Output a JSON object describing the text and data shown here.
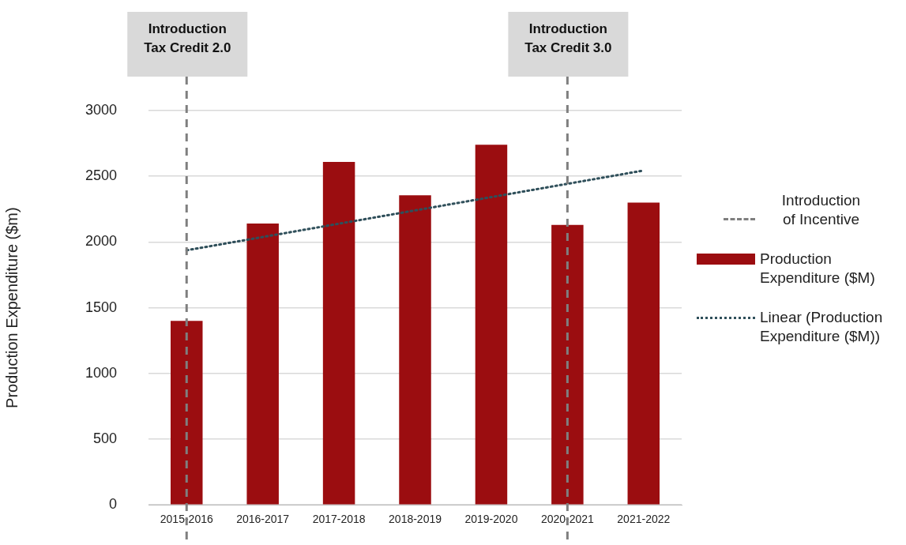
{
  "chart_data": {
    "type": "bar",
    "ylabel": "Production Expenditure ($m)",
    "categories": [
      "2015-2016",
      "2016-2017",
      "2017-2018",
      "2018-2019",
      "2019-2020",
      "2020-2021",
      "2021-2022"
    ],
    "series": [
      {
        "name": "Production Expenditure ($M)",
        "color": "#9b0d10",
        "values": [
          1400,
          2140,
          2610,
          2355,
          2740,
          2130,
          2300
        ]
      },
      {
        "name": "Linear (Production Expenditure ($M))",
        "type": "line",
        "color": "#2f4f5a",
        "line_style": "dotted",
        "marker": "none",
        "x": [
          "2015-2016",
          "2021-2022"
        ],
        "values": [
          1937,
          2544
        ]
      }
    ],
    "ylim": [
      0,
      3000
    ],
    "yticks": [
      0,
      500,
      1000,
      1500,
      2000,
      2500,
      3000
    ],
    "grid": "y",
    "legend": "right",
    "ref_lines": [
      {
        "axis": "x",
        "value": "2015-2016",
        "label": "Introduction\nTax Credit 2.0",
        "color": "#7f7f7f",
        "line_style": "dashed"
      },
      {
        "axis": "x",
        "value": "2020-2021",
        "label": "Introduction\nTax Credit 3.0",
        "color": "#7f7f7f",
        "line_style": "dashed"
      }
    ],
    "annotations": [
      "Introduction of Incentive"
    ]
  }
}
